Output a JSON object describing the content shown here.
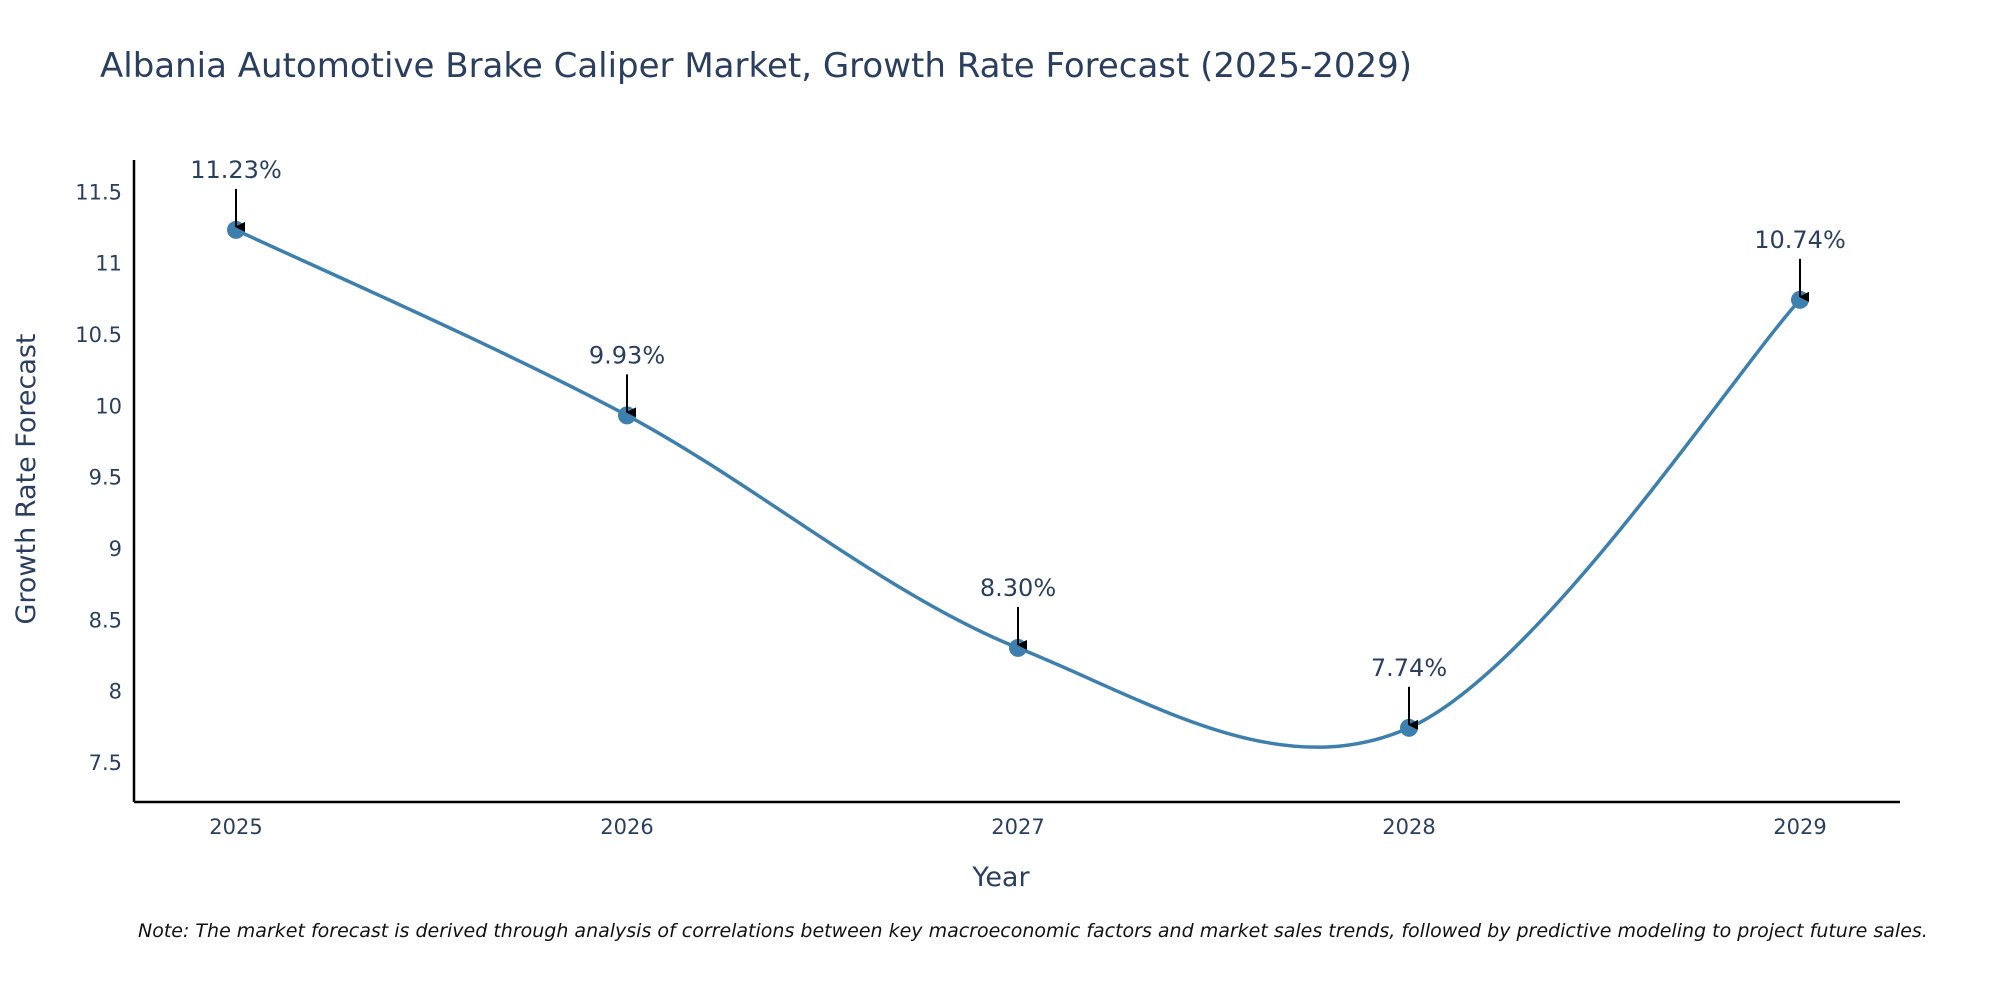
{
  "chart_data": {
    "type": "line",
    "title": "Albania Automotive Brake Caliper Market, Growth Rate Forecast (2025-2029)",
    "xlabel": "Year",
    "ylabel": "Growth Rate Forecast",
    "categories": [
      "2025",
      "2026",
      "2027",
      "2028",
      "2029"
    ],
    "values": [
      11.23,
      9.93,
      8.3,
      7.74,
      10.74
    ],
    "data_labels": [
      "11.23%",
      "9.93%",
      "8.30%",
      "7.74%",
      "10.74%"
    ],
    "yticks": [
      7.5,
      8,
      8.5,
      9,
      9.5,
      10,
      10.5,
      11,
      11.5
    ],
    "ytick_labels": [
      "7.5",
      "8",
      "8.5",
      "9",
      "9.5",
      "10",
      "10.5",
      "11",
      "11.5"
    ],
    "ylim": [
      7.22,
      11.72
    ],
    "grid": false,
    "line_color": "#3d7fad",
    "note": "Note: The market forecast is derived through analysis of correlations between key macroeconomic factors and market sales trends, followed by predictive modeling to project future sales."
  }
}
